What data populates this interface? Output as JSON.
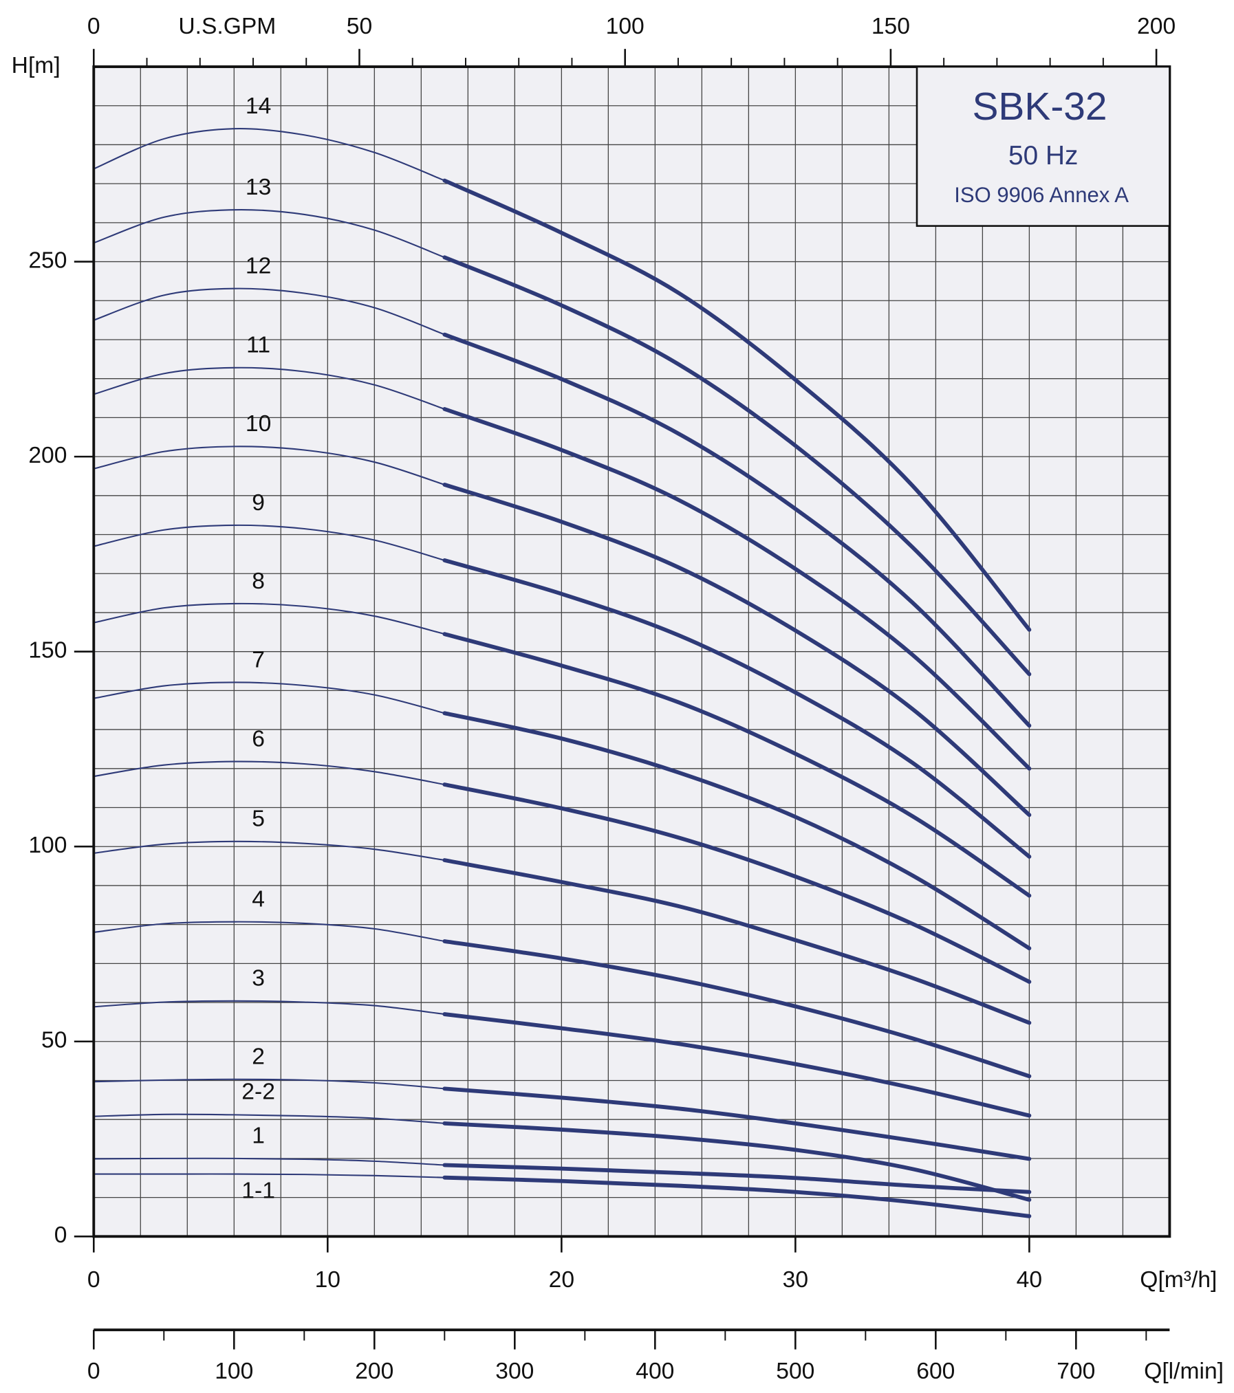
{
  "chart_data": {
    "type": "line",
    "title": "SBK-32",
    "subtitle": "50 Hz",
    "note": "ISO 9906 Annex A",
    "xlabel": "Q[m³/h]",
    "ylabel": "H[m]",
    "x2label": "U.S.GPM",
    "x3label": "Q[l/min]",
    "color": "#2e3a78",
    "operating_range": [
      15,
      40
    ],
    "x": [
      0,
      3,
      6,
      9,
      12,
      15,
      20,
      25,
      30,
      35,
      40
    ],
    "xlim": [
      0,
      46
    ],
    "ylim": [
      0,
      300
    ],
    "xticks": [
      0,
      10,
      20,
      30,
      40
    ],
    "yticks": [
      0,
      50,
      100,
      150,
      200,
      250
    ],
    "xgrid": [
      2,
      4,
      6,
      8,
      10,
      12,
      14,
      16,
      18,
      20,
      22,
      24,
      26,
      28,
      30,
      32,
      34,
      36,
      38,
      40,
      42,
      44
    ],
    "ygrid": [
      10,
      20,
      30,
      40,
      50,
      60,
      70,
      80,
      90,
      100,
      110,
      120,
      130,
      140,
      150,
      160,
      170,
      180,
      190,
      200,
      210,
      220,
      230,
      240,
      250,
      260,
      270,
      280,
      290
    ],
    "x2lim": [
      0,
      202.5
    ],
    "x2ticks": [
      0,
      50,
      100,
      150,
      200
    ],
    "x2minor": [
      10,
      20,
      30,
      40,
      60,
      70,
      80,
      90,
      110,
      120,
      130,
      140,
      160,
      170,
      180,
      190
    ],
    "x3lim": [
      0,
      766.7
    ],
    "x3ticks": [
      0,
      100,
      200,
      300,
      400,
      500,
      600,
      700
    ],
    "x3minor": [
      50,
      150,
      250,
      350,
      450,
      550,
      650,
      750
    ],
    "series": [
      {
        "name": "14",
        "values": [
          273.8,
          281.5,
          284.1,
          282.5,
          278.0,
          270.8,
          257.4,
          242.0,
          219.7,
          192.6,
          155.6
        ]
      },
      {
        "name": "13",
        "values": [
          254.8,
          261.4,
          263.3,
          262.1,
          258.1,
          251.1,
          238.8,
          223.7,
          202.8,
          176.8,
          144.2
        ]
      },
      {
        "name": "12",
        "values": [
          235.0,
          241.4,
          243.1,
          241.9,
          238.2,
          231.3,
          219.9,
          205.9,
          186.6,
          162.6,
          131.0
        ]
      },
      {
        "name": "11",
        "values": [
          216.0,
          221.3,
          222.8,
          221.8,
          218.4,
          212.2,
          201.7,
          188.9,
          171.2,
          149.2,
          120.0
        ]
      },
      {
        "name": "10",
        "values": [
          196.9,
          201.3,
          202.6,
          201.7,
          198.6,
          192.8,
          183.3,
          171.6,
          155.4,
          135.3,
          108.1
        ]
      },
      {
        "name": "9",
        "values": [
          177.0,
          181.2,
          182.4,
          181.5,
          178.6,
          173.4,
          164.8,
          154.2,
          139.5,
          121.5,
          97.4
        ]
      },
      {
        "name": "8",
        "values": [
          157.4,
          161.2,
          162.3,
          161.6,
          159.1,
          154.5,
          146.4,
          137.0,
          123.8,
          107.8,
          87.4
        ]
      },
      {
        "name": "7",
        "values": [
          138.0,
          141.2,
          142.1,
          141.3,
          138.9,
          134.2,
          127.7,
          119.0,
          107.6,
          92.6,
          73.9
        ]
      },
      {
        "name": "6",
        "values": [
          118.0,
          120.9,
          121.8,
          121.2,
          119.2,
          115.9,
          109.8,
          102.3,
          92.3,
          80.2,
          65.3
        ]
      },
      {
        "name": "5",
        "values": [
          98.3,
          100.6,
          101.3,
          100.8,
          99.3,
          96.5,
          90.9,
          84.7,
          76.0,
          66.3,
          54.8
        ]
      },
      {
        "name": "4",
        "values": [
          78.0,
          80.2,
          80.7,
          80.3,
          78.9,
          75.7,
          71.3,
          65.9,
          59.0,
          50.8,
          41.1
        ]
      },
      {
        "name": "3",
        "values": [
          58.9,
          60.1,
          60.4,
          60.1,
          59.2,
          57.0,
          53.4,
          49.4,
          44.2,
          38.1,
          31.0
        ]
      },
      {
        "name": "2",
        "values": [
          39.7,
          40.1,
          40.3,
          40.1,
          39.4,
          37.9,
          35.6,
          32.8,
          29.0,
          24.6,
          19.9
        ]
      },
      {
        "name": "2-2",
        "values": [
          30.8,
          31.3,
          31.2,
          30.9,
          30.3,
          29.0,
          27.4,
          25.3,
          22.2,
          17.3,
          9.4
        ]
      },
      {
        "name": "1",
        "values": [
          19.9,
          20.0,
          20.0,
          19.8,
          19.3,
          18.3,
          17.4,
          16.3,
          15.0,
          13.0,
          11.4
        ]
      },
      {
        "name": "1-1",
        "label_side": "below",
        "values": [
          16.0,
          16.0,
          16.0,
          15.9,
          15.6,
          15.1,
          14.2,
          13.0,
          11.4,
          8.8,
          5.2
        ]
      }
    ]
  }
}
